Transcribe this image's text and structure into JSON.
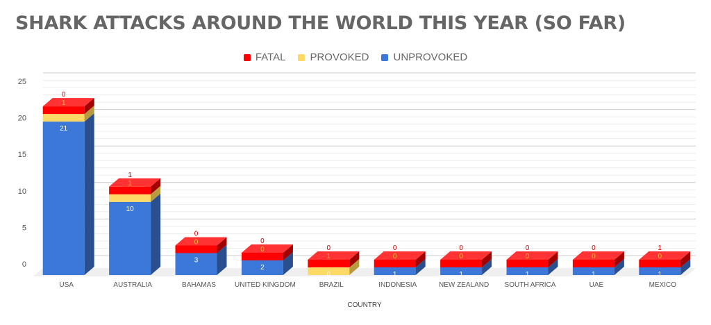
{
  "chart_data": {
    "type": "bar",
    "stacked": true,
    "three_d": true,
    "title": "SHARK ATTACKS AROUND THE WORLD THIS YEAR (SO FAR)",
    "xlabel": "COUNTRY",
    "ylabel": "",
    "ylim": [
      0,
      25
    ],
    "yticks": [
      0,
      5,
      10,
      15,
      20,
      25
    ],
    "legend_position": "top-center",
    "categories": [
      "USA",
      "AUSTRALIA",
      "BAHAMAS",
      "UNITED KINGDOM",
      "BRAZIL",
      "INDONESIA",
      "NEW ZEALAND",
      "SOUTH AFRICA",
      "UAE",
      "MEXICO"
    ],
    "series": [
      {
        "name": "UNPROVOKED",
        "color": "#3c78d8",
        "side_color": "#2a4f8f",
        "top_color": "#5b8ee6",
        "label_color": "#ffffff",
        "values": [
          21,
          10,
          3,
          2,
          0,
          1,
          1,
          1,
          1,
          1
        ]
      },
      {
        "name": "PROVOKED",
        "color": "#ffd966",
        "side_color": "#b89b3e",
        "top_color": "#ffe38a",
        "label_color": "#f1c232",
        "values": [
          1,
          1,
          0,
          0,
          1,
          0,
          0,
          0,
          0,
          0
        ]
      },
      {
        "name": "FATAL",
        "color": "#ff0000",
        "side_color": "#a00000",
        "top_color": "#ff3333",
        "label_color": "#cc0000",
        "values": [
          0,
          1,
          0,
          0,
          0,
          0,
          0,
          0,
          0,
          1
        ]
      }
    ],
    "legend_order": [
      "FATAL",
      "PROVOKED",
      "UNPROVOKED"
    ]
  }
}
